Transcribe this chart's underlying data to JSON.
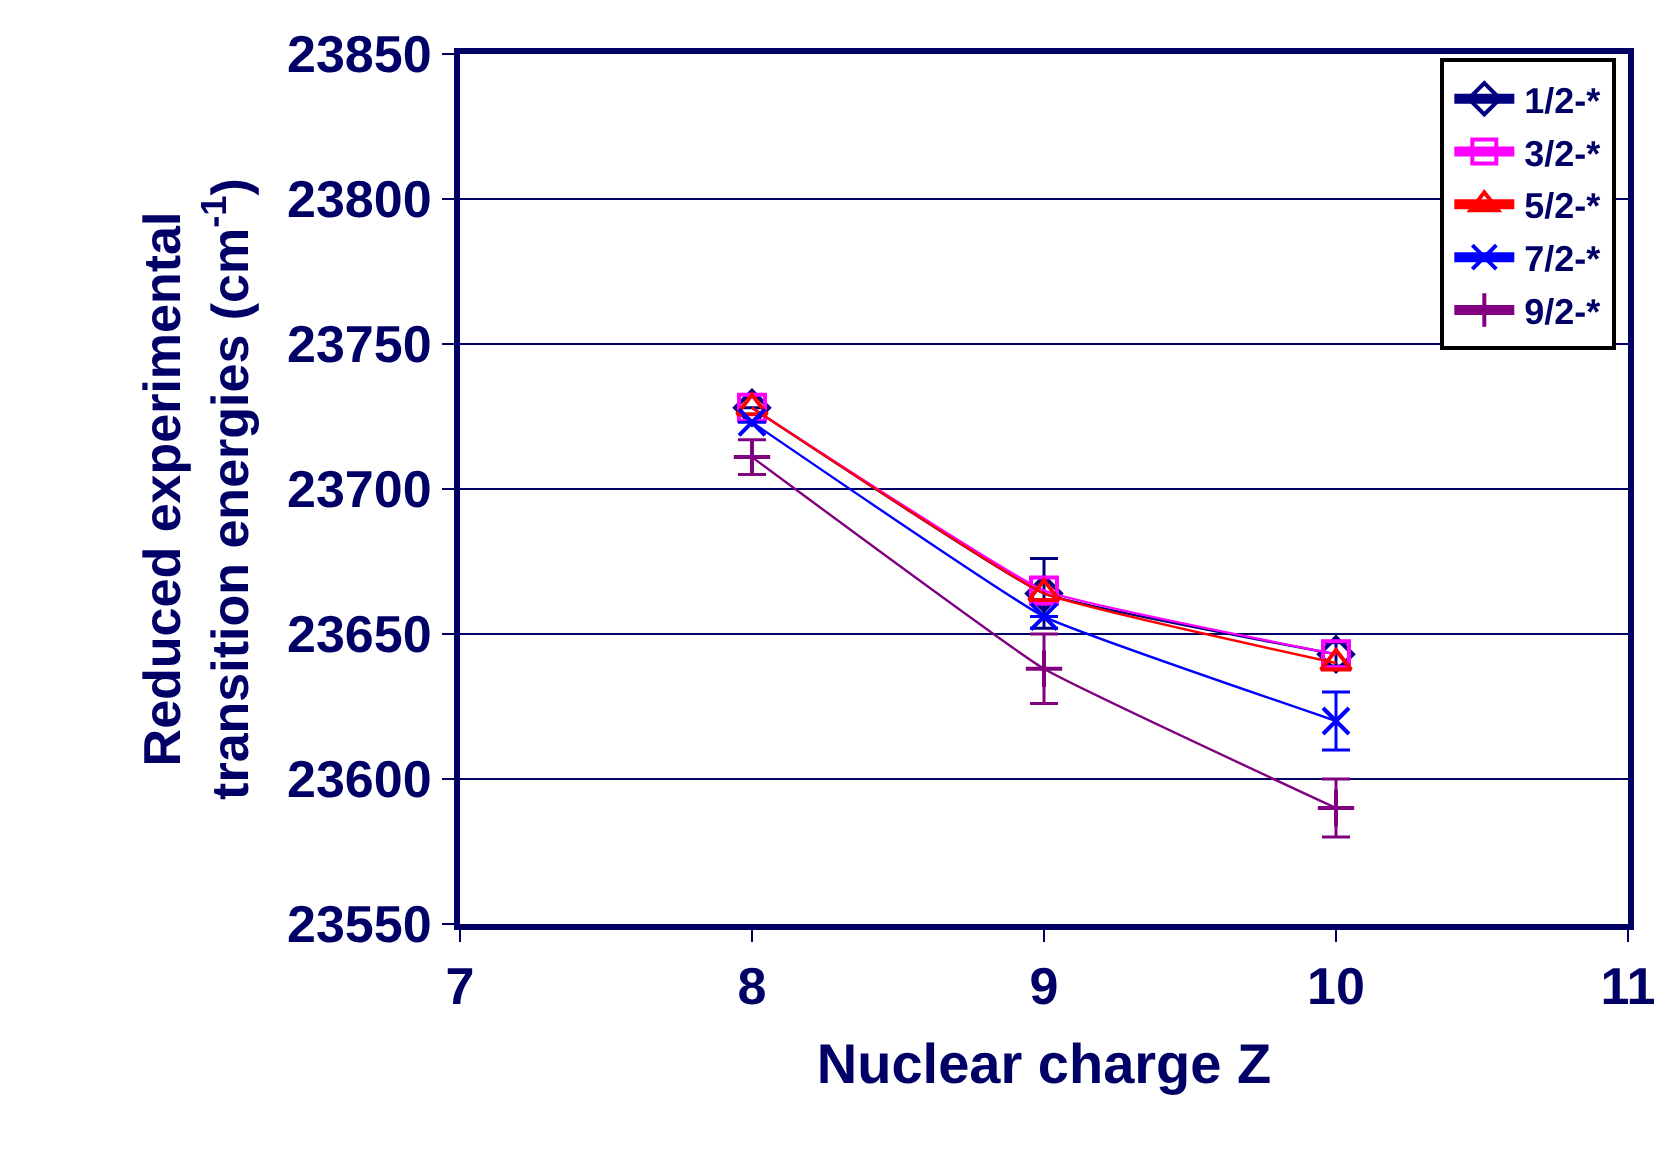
{
  "chart_data": {
    "type": "line",
    "xlabel": "Nuclear charge Z",
    "ylabel": "Reduced experimental\ntransition energies (cm$^{-1}$)",
    "x": [
      8,
      9,
      10
    ],
    "series": [
      {
        "name": "1/2-*",
        "color": "#000080",
        "marker": "diamond",
        "values": [
          23728,
          23664,
          23643
        ],
        "errors": [
          null,
          12,
          4
        ]
      },
      {
        "name": "3/2-*",
        "color": "#ff00ff",
        "marker": "square",
        "values": [
          23728,
          23665,
          23643
        ]
      },
      {
        "name": "5/2-*",
        "color": "#ff0000",
        "marker": "triangle",
        "values": [
          23728,
          23664,
          23640
        ]
      },
      {
        "name": "7/2-*",
        "color": "#0000ff",
        "marker": "cross",
        "values": [
          23723,
          23656,
          23620
        ],
        "errors": [
          null,
          null,
          10
        ]
      },
      {
        "name": "9/2-*",
        "color": "#800080",
        "marker": "plus",
        "values": [
          23711,
          23638,
          23590
        ],
        "errors": [
          6,
          12,
          10
        ]
      }
    ],
    "xlim": [
      7,
      11
    ],
    "xticks": [
      7,
      8,
      9,
      10,
      11
    ],
    "ylim": [
      23550,
      23850
    ],
    "yticks": [
      23550,
      23600,
      23650,
      23700,
      23750,
      23800,
      23850
    ],
    "grid": "y",
    "legend": "top right"
  }
}
